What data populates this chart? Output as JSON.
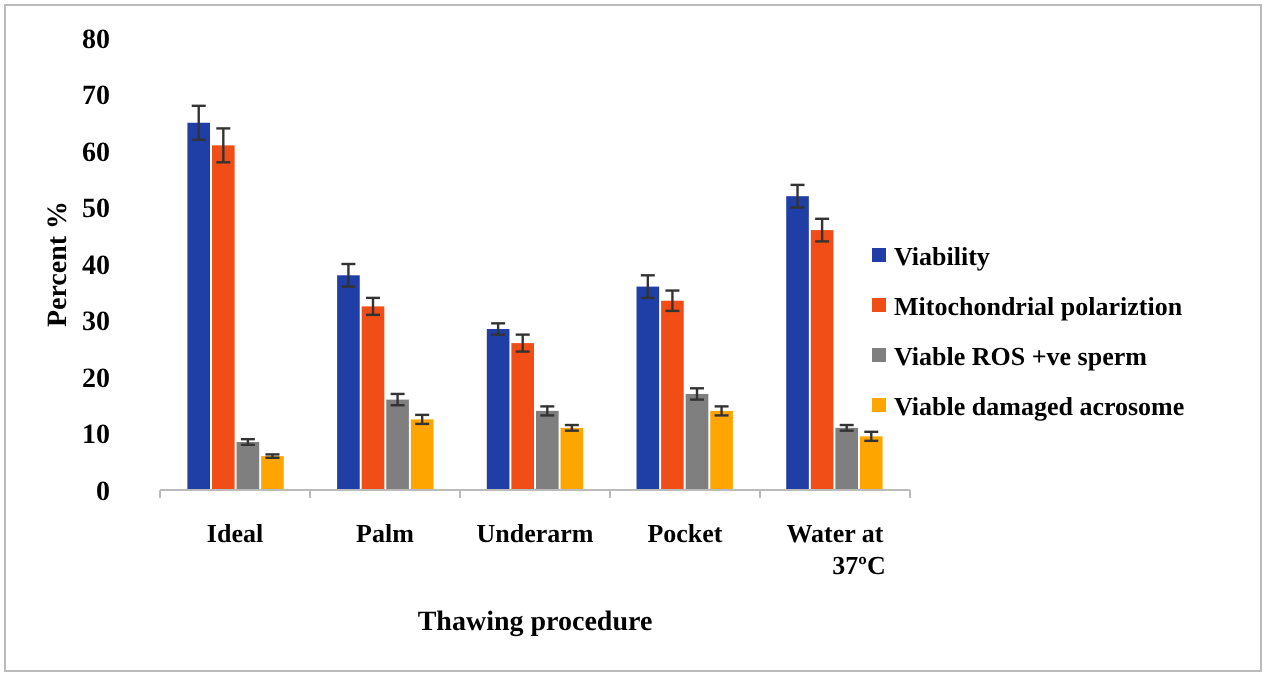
{
  "chart_data": {
    "type": "bar",
    "xlabel": "Thawing procedure",
    "ylabel": "Percent %",
    "categories": [
      "Ideal",
      "Palm",
      "Underarm",
      "Pocket",
      "Water at 37ºC"
    ],
    "ylim": [
      0,
      80
    ],
    "yticks": [
      0,
      10,
      20,
      30,
      40,
      50,
      60,
      70,
      80
    ],
    "grid": false,
    "legend": "right",
    "series": [
      {
        "name": "Viability",
        "color": "#1f3ea6",
        "values": [
          65,
          38,
          28.5,
          36,
          52
        ],
        "errors": [
          3,
          2,
          1,
          2,
          2
        ]
      },
      {
        "name": "Mitochondrial polariztion",
        "color": "#f04e16",
        "values": [
          61,
          32.5,
          26,
          33.5,
          46
        ],
        "errors": [
          3,
          1.5,
          1.5,
          1.8,
          2
        ]
      },
      {
        "name": "Viable ROS +ve sperm",
        "color": "#7f7f7f",
        "values": [
          8.5,
          16,
          14,
          17,
          11
        ],
        "errors": [
          0.5,
          1,
          0.8,
          1,
          0.5
        ]
      },
      {
        "name": "Viable damaged acrosome",
        "color": "#ffa500",
        "values": [
          6,
          12.5,
          11,
          14,
          9.5
        ],
        "errors": [
          0.3,
          0.8,
          0.5,
          0.8,
          0.8
        ]
      }
    ]
  }
}
